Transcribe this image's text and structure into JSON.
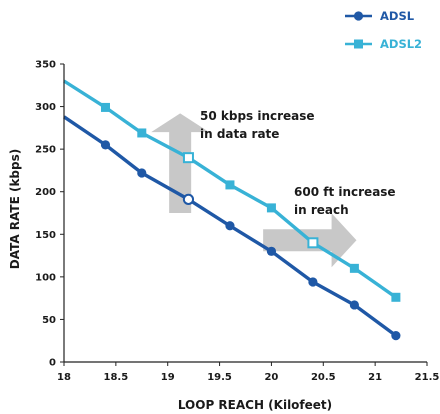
{
  "chart_data": {
    "type": "line",
    "xlabel": "LOOP REACH (Kilofeet)",
    "ylabel": "DATA RATE (kbps)",
    "xlim": [
      18,
      21.5
    ],
    "ylim": [
      0,
      350
    ],
    "x_ticks": [
      "18",
      "18.5",
      "19",
      "19.5",
      "20",
      "20.5",
      "21",
      "21.5"
    ],
    "y_ticks": [
      "0",
      "50",
      "100",
      "150",
      "200",
      "250",
      "300",
      "350"
    ],
    "grid": false,
    "legend_position": "top-right",
    "series": [
      {
        "name": "ADSL",
        "color": "#1f58a6",
        "marker": "circle",
        "line_start": [
          18.0,
          288
        ],
        "points": [
          [
            18.4,
            255
          ],
          [
            18.75,
            222
          ],
          [
            19.2,
            191
          ],
          [
            19.6,
            160
          ],
          [
            20.0,
            130
          ],
          [
            20.4,
            94
          ],
          [
            20.8,
            67
          ],
          [
            21.2,
            31
          ]
        ]
      },
      {
        "name": "ADSL2",
        "color": "#38b2d6",
        "marker": "square",
        "line_start": [
          18.0,
          330
        ],
        "points": [
          [
            18.4,
            299
          ],
          [
            18.75,
            269
          ],
          [
            19.2,
            240
          ],
          [
            19.6,
            208
          ],
          [
            20.0,
            181
          ],
          [
            20.4,
            140
          ],
          [
            20.8,
            110
          ],
          [
            21.2,
            76
          ]
        ]
      }
    ],
    "annotations": [
      {
        "lines": [
          "50 kbps increase",
          "in data rate"
        ],
        "arrow": "up"
      },
      {
        "lines": [
          "600 ft increase",
          "in reach"
        ],
        "arrow": "right"
      }
    ]
  }
}
